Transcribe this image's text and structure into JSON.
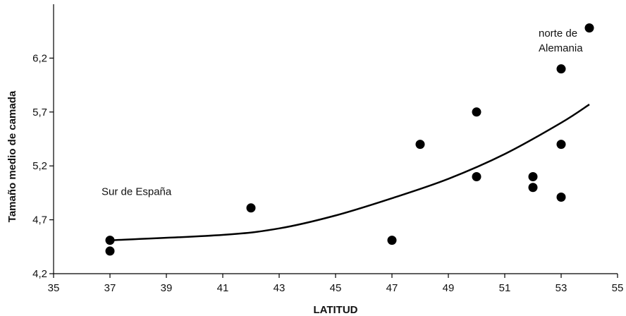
{
  "chart_data": {
    "type": "scatter",
    "xlabel": "LATITUD",
    "ylabel": "Tamaño medio de camada",
    "xlim": [
      35,
      55
    ],
    "ylim": [
      4.2,
      6.7
    ],
    "x_ticks": [
      "35",
      "37",
      "39",
      "41",
      "43",
      "45",
      "47",
      "49",
      "51",
      "53",
      "55"
    ],
    "y_ticks": [
      "4,2",
      "4,7",
      "5,2",
      "5,7",
      "6,2"
    ],
    "grid": false,
    "legend": "none",
    "points": [
      {
        "x": 37,
        "y": 4.51
      },
      {
        "x": 37,
        "y": 4.41
      },
      {
        "x": 42,
        "y": 4.81
      },
      {
        "x": 47,
        "y": 4.51
      },
      {
        "x": 48,
        "y": 5.4
      },
      {
        "x": 50,
        "y": 5.7
      },
      {
        "x": 50,
        "y": 5.1
      },
      {
        "x": 52,
        "y": 5.1
      },
      {
        "x": 52,
        "y": 5.0
      },
      {
        "x": 53,
        "y": 6.1
      },
      {
        "x": 53,
        "y": 5.4
      },
      {
        "x": 53,
        "y": 4.91
      },
      {
        "x": 54,
        "y": 6.48
      }
    ],
    "trendline": {
      "type": "polynomial",
      "x_range": [
        37,
        54
      ],
      "points": [
        {
          "x": 37,
          "y": 4.51
        },
        {
          "x": 41,
          "y": 4.56
        },
        {
          "x": 43,
          "y": 4.62
        },
        {
          "x": 45,
          "y": 4.74
        },
        {
          "x": 47,
          "y": 4.9
        },
        {
          "x": 49,
          "y": 5.08
        },
        {
          "x": 51,
          "y": 5.31
        },
        {
          "x": 53,
          "y": 5.6
        },
        {
          "x": 54,
          "y": 5.77
        }
      ]
    },
    "annotations": [
      {
        "lines": [
          "Sur de España"
        ],
        "x": 36.7,
        "y": 4.93
      },
      {
        "lines": [
          "norte de",
          "Alemania"
        ],
        "x": 52.2,
        "y": 6.4
      }
    ]
  }
}
